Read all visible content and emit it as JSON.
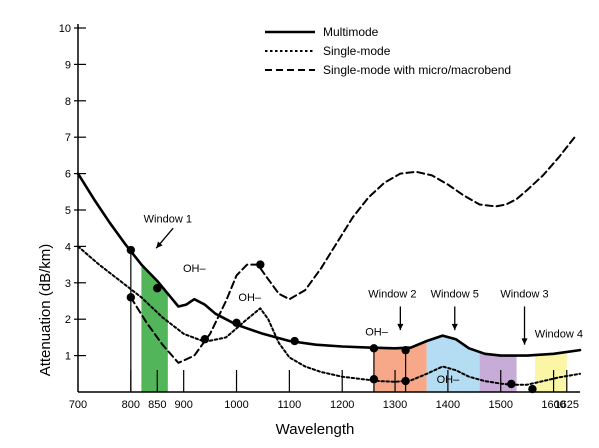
{
  "chart_data": {
    "type": "line",
    "title": "",
    "xlabel": "Wavelength",
    "ylabel": "Attenuation (dB/km)",
    "xlim": [
      700,
      1650
    ],
    "ylim": [
      0,
      10
    ],
    "x_ticks": [
      700,
      800,
      850,
      900,
      1000,
      1100,
      1200,
      1300,
      1400,
      1500,
      1600,
      1625
    ],
    "y_ticks": [
      1,
      2,
      3,
      4,
      5,
      6,
      7,
      8,
      9,
      10
    ],
    "legend_position": "top-right",
    "grid": false,
    "series": [
      {
        "name": "Multimode",
        "style": "solid",
        "x": [
          700,
          730,
          760,
          790,
          820,
          850,
          870,
          890,
          905,
          920,
          940,
          960,
          1000,
          1050,
          1100,
          1150,
          1200,
          1250,
          1300,
          1330,
          1360,
          1390,
          1415,
          1440,
          1470,
          1500,
          1550,
          1600,
          1650
        ],
        "y": [
          6.0,
          5.3,
          4.65,
          4.05,
          3.5,
          3.05,
          2.7,
          2.35,
          2.4,
          2.55,
          2.4,
          2.15,
          1.85,
          1.6,
          1.4,
          1.3,
          1.25,
          1.22,
          1.2,
          1.22,
          1.4,
          1.55,
          1.45,
          1.2,
          1.05,
          1.0,
          1.0,
          1.05,
          1.15
        ]
      },
      {
        "name": "Single-mode",
        "style": "dotted",
        "x": [
          700,
          740,
          780,
          820,
          860,
          900,
          940,
          980,
          1020,
          1045,
          1060,
          1080,
          1100,
          1130,
          1160,
          1200,
          1240,
          1270,
          1300,
          1330,
          1360,
          1390,
          1415,
          1440,
          1470,
          1500,
          1520,
          1550,
          1580,
          1610,
          1650
        ],
        "y": [
          4.0,
          3.5,
          3.05,
          2.6,
          2.05,
          1.6,
          1.38,
          1.5,
          2.0,
          2.3,
          2.0,
          1.35,
          0.95,
          0.7,
          0.55,
          0.42,
          0.35,
          0.3,
          0.28,
          0.32,
          0.5,
          0.7,
          0.6,
          0.42,
          0.3,
          0.23,
          0.2,
          0.2,
          0.3,
          0.4,
          0.5
        ]
      },
      {
        "name": "Single-mode with micro/macrobend",
        "style": "dashed",
        "x": [
          800,
          830,
          860,
          890,
          920,
          950,
          980,
          1000,
          1020,
          1040,
          1060,
          1080,
          1100,
          1130,
          1160,
          1190,
          1220,
          1250,
          1280,
          1310,
          1340,
          1370,
          1400,
          1430,
          1460,
          1490,
          1510,
          1530,
          1550,
          1580,
          1610,
          1640
        ],
        "y": [
          2.6,
          1.9,
          1.3,
          0.8,
          1.0,
          1.6,
          2.5,
          3.2,
          3.5,
          3.5,
          3.1,
          2.7,
          2.55,
          2.8,
          3.4,
          4.1,
          4.8,
          5.35,
          5.75,
          6.0,
          6.05,
          5.95,
          5.7,
          5.4,
          5.15,
          5.1,
          5.15,
          5.3,
          5.55,
          5.95,
          6.45,
          7.0
        ]
      }
    ],
    "markers": [
      {
        "x": 800,
        "y": 3.9
      },
      {
        "x": 800,
        "y": 2.6
      },
      {
        "x": 850,
        "y": 2.85
      },
      {
        "x": 940,
        "y": 1.45
      },
      {
        "x": 1000,
        "y": 1.9
      },
      {
        "x": 1045,
        "y": 3.5
      },
      {
        "x": 1110,
        "y": 1.4
      },
      {
        "x": 1260,
        "y": 1.2
      },
      {
        "x": 1260,
        "y": 0.35
      },
      {
        "x": 1320,
        "y": 1.15
      },
      {
        "x": 1320,
        "y": 0.3
      },
      {
        "x": 1520,
        "y": 0.22
      },
      {
        "x": 1560,
        "y": 0.08
      }
    ],
    "windows": [
      {
        "x0": 820,
        "x1": 870,
        "color": "#53b559"
      },
      {
        "x0": 1260,
        "x1": 1360,
        "color": "#f6a889"
      },
      {
        "x0": 1360,
        "x1": 1460,
        "color": "#b4dcf3"
      },
      {
        "x0": 1460,
        "x1": 1530,
        "color": "#c8acd8"
      },
      {
        "x0": 1565,
        "x1": 1625,
        "color": "#fbf5a6"
      }
    ],
    "annotations": [
      {
        "id": "window1",
        "text": "Window 1",
        "x": 870,
        "y": 4.65,
        "arrow": {
          "x1": 880,
          "y1": 4.5,
          "x2": 848,
          "y2": 3.95
        }
      },
      {
        "id": "oh1",
        "text": "OH–",
        "x": 920,
        "y": 3.3
      },
      {
        "id": "oh2",
        "text": "OH–",
        "x": 1025,
        "y": 2.5
      },
      {
        "id": "oh3",
        "text": "OH–",
        "x": 1265,
        "y": 1.55
      },
      {
        "id": "oh4",
        "text": "OH–",
        "x": 1400,
        "y": 0.25
      },
      {
        "id": "window2",
        "text": "Window 2",
        "x": 1295,
        "y": 2.6,
        "arrow": {
          "x1": 1310,
          "y1": 2.35,
          "x2": 1310,
          "y2": 1.7
        }
      },
      {
        "id": "window5",
        "text": "Window 5",
        "x": 1413,
        "y": 2.6,
        "arrow": {
          "x1": 1413,
          "y1": 2.35,
          "x2": 1413,
          "y2": 1.7
        }
      },
      {
        "id": "window3",
        "text": "Window 3",
        "x": 1545,
        "y": 2.6,
        "arrow": {
          "x1": 1545,
          "y1": 2.35,
          "x2": 1545,
          "y2": 1.3
        }
      },
      {
        "id": "window4",
        "text": "Window 4",
        "x": 1610,
        "y": 1.5
      }
    ],
    "colors": {
      "background": "#ffffff",
      "line": "#000000",
      "marker": "#000000"
    }
  }
}
